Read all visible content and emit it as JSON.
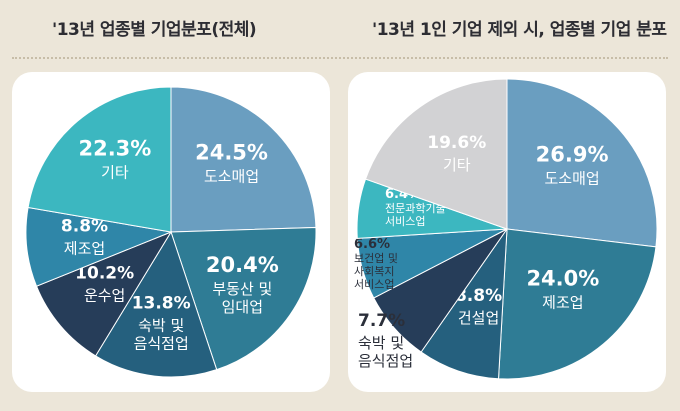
{
  "titles": {
    "left": "'13년 업종별 기업분포(전체)",
    "right": "'13년 1인 기업 제외 시, 업종별 기업 분포"
  },
  "chart_data": [
    {
      "type": "pie",
      "title": "'13년 업종별 기업분포(전체)",
      "slices": [
        {
          "label": "도소매업",
          "value": 24.5,
          "value_label": "24.5%",
          "color": "#6a9ec0"
        },
        {
          "label": "부동산 및 임대업",
          "value": 20.4,
          "value_label": "20.4%",
          "color": "#2f7c95"
        },
        {
          "label": "숙박 및 음식점업",
          "value": 13.8,
          "value_label": "13.8%",
          "color": "#25607e"
        },
        {
          "label": "운수업",
          "value": 10.2,
          "value_label": "10.2%",
          "color": "#263d59"
        },
        {
          "label": "제조업",
          "value": 8.8,
          "value_label": "8.8%",
          "color": "#2f86a8"
        },
        {
          "label": "기타",
          "value": 22.3,
          "value_label": "22.3%",
          "color": "#3cb7c0"
        }
      ]
    },
    {
      "type": "pie",
      "title": "'13년 1인 기업 제외 시, 업종별 기업 분포",
      "slices": [
        {
          "label": "도소매업",
          "value": 26.9,
          "value_label": "26.9%",
          "color": "#6a9ec0"
        },
        {
          "label": "제조업",
          "value": 24.0,
          "value_label": "24.0%",
          "color": "#2f7c95"
        },
        {
          "label": "건설업",
          "value": 8.8,
          "value_label": "8.8%",
          "color": "#25607e"
        },
        {
          "label": "숙박 및 음식점업",
          "value": 7.7,
          "value_label": "7.7%",
          "color": "#263d59"
        },
        {
          "label": "보건업 및 사회복지 서비스업",
          "value": 6.6,
          "value_label": "6.6%",
          "color": "#2f86a8"
        },
        {
          "label": "전문과학기술 서비스업",
          "value": 6.4,
          "value_label": "6.4%",
          "color": "#3cb7c0"
        },
        {
          "label": "기타",
          "value": 19.6,
          "value_label": "19.6%",
          "color": "#d2d2d4"
        }
      ]
    }
  ]
}
